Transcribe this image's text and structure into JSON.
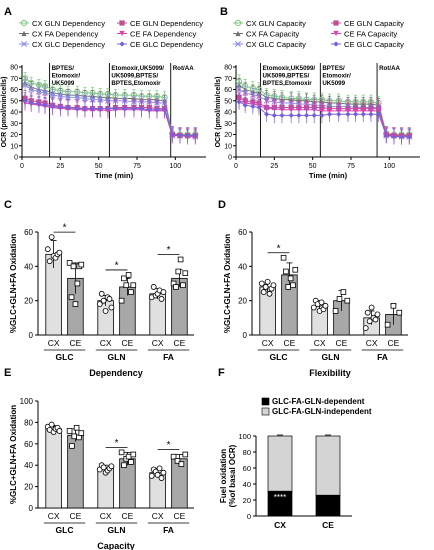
{
  "chart_data": [
    {
      "panel": "A",
      "type": "line",
      "xlabel": "Time (min)",
      "ylabel": "OCR (pmol/min/cells)",
      "xlim": [
        0,
        120
      ],
      "ylim": [
        0,
        80
      ],
      "xticks": [
        0,
        25,
        50,
        75,
        100
      ],
      "yticks": [
        0,
        10,
        20,
        30,
        40,
        50,
        60,
        70,
        80
      ],
      "legend_placement": "top",
      "annotations": [
        {
          "x": 18,
          "lines": [
            "BPTES/",
            "Etomoxir/",
            "UK5099"
          ]
        },
        {
          "x": 57,
          "lines": [
            "Etomoxir,UK5099/",
            "UK5099,BPTES/",
            "BPTES,Etomoxir"
          ]
        },
        {
          "x": 97,
          "lines": [
            "Rot/AA"
          ]
        }
      ],
      "x": [
        2,
        6,
        11,
        15,
        20,
        25,
        30,
        36,
        41,
        46,
        51,
        56,
        61,
        67,
        73,
        78,
        83,
        88,
        93,
        98,
        103,
        108,
        113
      ],
      "series": [
        {
          "name": "CX GLN Dependency",
          "color": "#7fc97f",
          "marker": "circle-open",
          "values": [
            70,
            66,
            64,
            63,
            60,
            59,
            58,
            58,
            57,
            57,
            56,
            56,
            55,
            55,
            55,
            54,
            54,
            54,
            53,
            21,
            20,
            20,
            20
          ],
          "err": 5
        },
        {
          "name": "CX FA Dependency",
          "color": "#707070",
          "marker": "triangle",
          "values": [
            66,
            62,
            60,
            59,
            57,
            56,
            55,
            55,
            54,
            54,
            53,
            53,
            52,
            52,
            52,
            51,
            51,
            51,
            50,
            20,
            20,
            19,
            19
          ],
          "err": 5
        },
        {
          "name": "CX GLC Dependency",
          "color": "#8e8ee8",
          "marker": "cross",
          "values": [
            64,
            60,
            58,
            57,
            55,
            54,
            53,
            53,
            52,
            51,
            51,
            50,
            50,
            50,
            49,
            49,
            49,
            48,
            48,
            19,
            19,
            19,
            18
          ],
          "err": 5
        },
        {
          "name": "CE GLN Dependency",
          "color": "#c05090",
          "marker": "square",
          "values": [
            52,
            50,
            49,
            48,
            46,
            45,
            44,
            44,
            43,
            43,
            43,
            43,
            44,
            44,
            44,
            44,
            44,
            43,
            43,
            20,
            19,
            19,
            19
          ],
          "err": 7
        },
        {
          "name": "CE FA Dependency",
          "color": "#e040b0",
          "marker": "triangle-down",
          "values": [
            48,
            47,
            46,
            45,
            44,
            43,
            43,
            42,
            42,
            42,
            42,
            41,
            42,
            42,
            42,
            42,
            41,
            41,
            41,
            19,
            19,
            18,
            18
          ],
          "err": 7
        },
        {
          "name": "CE GLC Dependency",
          "color": "#7a60d8",
          "marker": "diamond",
          "values": [
            50,
            48,
            47,
            46,
            45,
            44,
            44,
            43,
            43,
            43,
            43,
            43,
            43,
            43,
            43,
            43,
            42,
            42,
            42,
            20,
            19,
            19,
            19
          ],
          "err": 7
        }
      ]
    },
    {
      "panel": "B",
      "type": "line",
      "xlabel": "Time (min)",
      "ylabel": "OCR (pmol/min/cells)",
      "xlim": [
        0,
        120
      ],
      "ylim": [
        0,
        80
      ],
      "xticks": [
        0,
        25,
        50,
        75,
        100
      ],
      "yticks": [
        0,
        10,
        20,
        30,
        40,
        50,
        60,
        70,
        80
      ],
      "legend_placement": "top",
      "annotations": [
        {
          "x": 16,
          "lines": [
            "Etomoxir,UK5099/",
            "UK5099,BPTES/",
            "BPTES,Etomoxir"
          ]
        },
        {
          "x": 55,
          "lines": [
            "BPTES/",
            "Etomoxir/",
            "UK5099"
          ]
        },
        {
          "x": 92,
          "lines": [
            "Rot/AA"
          ]
        }
      ],
      "x": [
        2,
        6,
        11,
        15,
        20,
        25,
        30,
        36,
        41,
        46,
        51,
        56,
        61,
        67,
        73,
        78,
        83,
        88,
        93,
        98,
        103,
        108,
        113
      ],
      "series": [
        {
          "name": "CX GLN Capacity",
          "color": "#7fc97f",
          "marker": "circle-open",
          "values": [
            67,
            63,
            61,
            60,
            55,
            54,
            53,
            52,
            52,
            51,
            51,
            51,
            50,
            50,
            49,
            49,
            49,
            49,
            48,
            21,
            20,
            20,
            20
          ],
          "err": 6
        },
        {
          "name": "CX FA Capacity",
          "color": "#707070",
          "marker": "triangle",
          "values": [
            64,
            60,
            58,
            57,
            53,
            52,
            51,
            51,
            50,
            50,
            49,
            49,
            48,
            48,
            47,
            47,
            47,
            47,
            46,
            20,
            20,
            19,
            19
          ],
          "err": 6
        },
        {
          "name": "CX GLC Capacity",
          "color": "#8e8ee8",
          "marker": "cross",
          "values": [
            60,
            57,
            55,
            54,
            50,
            49,
            48,
            48,
            47,
            47,
            46,
            46,
            45,
            45,
            45,
            44,
            44,
            44,
            44,
            19,
            19,
            18,
            18
          ],
          "err": 6
        },
        {
          "name": "CE GLN Capacity",
          "color": "#c05090",
          "marker": "square",
          "values": [
            53,
            50,
            49,
            48,
            44,
            44,
            44,
            44,
            44,
            44,
            44,
            44,
            43,
            43,
            43,
            43,
            43,
            43,
            43,
            20,
            19,
            19,
            19
          ],
          "err": 7
        },
        {
          "name": "CE FA Capacity",
          "color": "#e040b0",
          "marker": "triangle-down",
          "values": [
            50,
            48,
            47,
            46,
            43,
            43,
            42,
            42,
            42,
            42,
            42,
            41,
            41,
            41,
            41,
            41,
            41,
            41,
            41,
            19,
            19,
            18,
            18
          ],
          "err": 7
        },
        {
          "name": "CE GLC Capacity",
          "color": "#7a60d8",
          "marker": "diamond",
          "values": [
            49,
            46,
            45,
            44,
            38,
            37,
            37,
            37,
            37,
            37,
            37,
            37,
            38,
            38,
            38,
            38,
            38,
            38,
            38,
            19,
            18,
            18,
            18
          ],
          "err": 7
        }
      ]
    },
    {
      "panel": "C",
      "type": "bar",
      "ylabel": "%GLC+GLN+FA Oxidation",
      "xlabel": "Dependency",
      "ylim": [
        0,
        60
      ],
      "yticks": [
        0,
        20,
        40,
        60
      ],
      "groups": [
        {
          "label": "GLC",
          "bars": [
            {
              "label": "CX",
              "value": 47,
              "err": 8,
              "points": [
                50,
                43,
                57,
                46,
                45,
                47,
                48
              ]
            },
            {
              "label": "CE",
              "value": 33,
              "err": 9,
              "points": [
                42,
                22,
                40,
                18,
                30,
                40,
                41
              ]
            }
          ],
          "sig": "*"
        },
        {
          "label": "GLN",
          "bars": [
            {
              "label": "CX",
              "value": 20,
              "err": 3,
              "points": [
                18,
                24,
                20,
                14,
                22,
                21,
                16
              ]
            },
            {
              "label": "CE",
              "value": 28,
              "err": 5,
              "points": [
                20,
                33,
                29,
                35,
                25,
                29
              ]
            }
          ],
          "sig": "*"
        },
        {
          "label": "FA",
          "bars": [
            {
              "label": "CX",
              "value": 24,
              "err": 3,
              "points": [
                22,
                28,
                23,
                24,
                26,
                21,
                25
              ]
            },
            {
              "label": "CE",
              "value": 33,
              "err": 5,
              "points": [
                30,
                28,
                37,
                44,
                29,
                36
              ]
            }
          ],
          "sig": "*"
        }
      ]
    },
    {
      "panel": "D",
      "type": "bar",
      "ylabel": "%GLC+GLN+FA Oxidation",
      "xlabel": "Flexibility",
      "ylim": [
        0,
        60
      ],
      "yticks": [
        0,
        20,
        40,
        60
      ],
      "groups": [
        {
          "label": "GLC",
          "bars": [
            {
              "label": "CX",
              "value": 28,
              "err": 3,
              "points": [
                30,
                25,
                28,
                31,
                24,
                27,
                29
              ]
            },
            {
              "label": "CE",
              "value": 35,
              "err": 7,
              "points": [
                45,
                37,
                28,
                33,
                29,
                38
              ]
            }
          ],
          "sig": "*"
        },
        {
          "label": "GLN",
          "bars": [
            {
              "label": "CX",
              "value": 17,
              "err": 3,
              "points": [
                16,
                20,
                18,
                14,
                19,
                15,
                17
              ]
            },
            {
              "label": "CE",
              "value": 20,
              "err": 6,
              "points": [
                14,
                21,
                25,
                20
              ]
            }
          ]
        },
        {
          "label": "FA",
          "bars": [
            {
              "label": "CX",
              "value": 10,
              "err": 4,
              "points": [
                4,
                13,
                8,
                16,
                10,
                9,
                12
              ]
            },
            {
              "label": "CE",
              "value": 12,
              "err": 6,
              "points": [
                6,
                17,
                13
              ]
            }
          ]
        }
      ]
    },
    {
      "panel": "E",
      "type": "bar",
      "ylabel": "%GLC+GLN+FA Oxidation",
      "xlabel": "Capacity",
      "ylim": [
        0,
        100
      ],
      "yticks": [
        0,
        20,
        40,
        60,
        80,
        100
      ],
      "groups": [
        {
          "label": "GLC",
          "bars": [
            {
              "label": "CX",
              "value": 74,
              "err": 3,
              "points": [
                76,
                73,
                78,
                71,
                74,
                75,
                72
              ]
            },
            {
              "label": "CE",
              "value": 68,
              "err": 6,
              "points": [
                72,
                58,
                67,
                75,
                66,
                70
              ]
            }
          ]
        },
        {
          "label": "GLN",
          "bars": [
            {
              "label": "CX",
              "value": 37,
              "err": 3,
              "points": [
                36,
                40,
                38,
                33,
                35,
                37,
                39
              ]
            },
            {
              "label": "CE",
              "value": 46,
              "err": 6,
              "points": [
                52,
                40,
                46,
                48,
                43,
                50
              ]
            }
          ],
          "sig": "*"
        },
        {
          "label": "FA",
          "bars": [
            {
              "label": "CX",
              "value": 33,
              "err": 4,
              "points": [
                30,
                36,
                34,
                31,
                37,
                28,
                33
              ]
            },
            {
              "label": "CE",
              "value": 46,
              "err": 4,
              "points": [
                48,
                44,
                41,
                50
              ]
            }
          ],
          "sig": "*"
        }
      ]
    },
    {
      "panel": "F",
      "type": "bar",
      "stacked": true,
      "ylabel_lines": [
        "Fuel oxidation",
        "(%of basal OCR)"
      ],
      "ylim": [
        0,
        100
      ],
      "yticks": [
        0,
        20,
        40,
        60,
        80,
        100
      ],
      "legend_placement": "top",
      "categories": [
        "CX",
        "CE"
      ],
      "series": [
        {
          "name": "GLC-FA-GLN-dependent",
          "color": "#000000",
          "values": [
            31,
            26
          ]
        },
        {
          "name": "GLC-FA-GLN-independent",
          "color": "#d4d4d4",
          "values": [
            69,
            74
          ]
        }
      ],
      "annotation": {
        "category": "CX",
        "text": "****"
      }
    }
  ]
}
